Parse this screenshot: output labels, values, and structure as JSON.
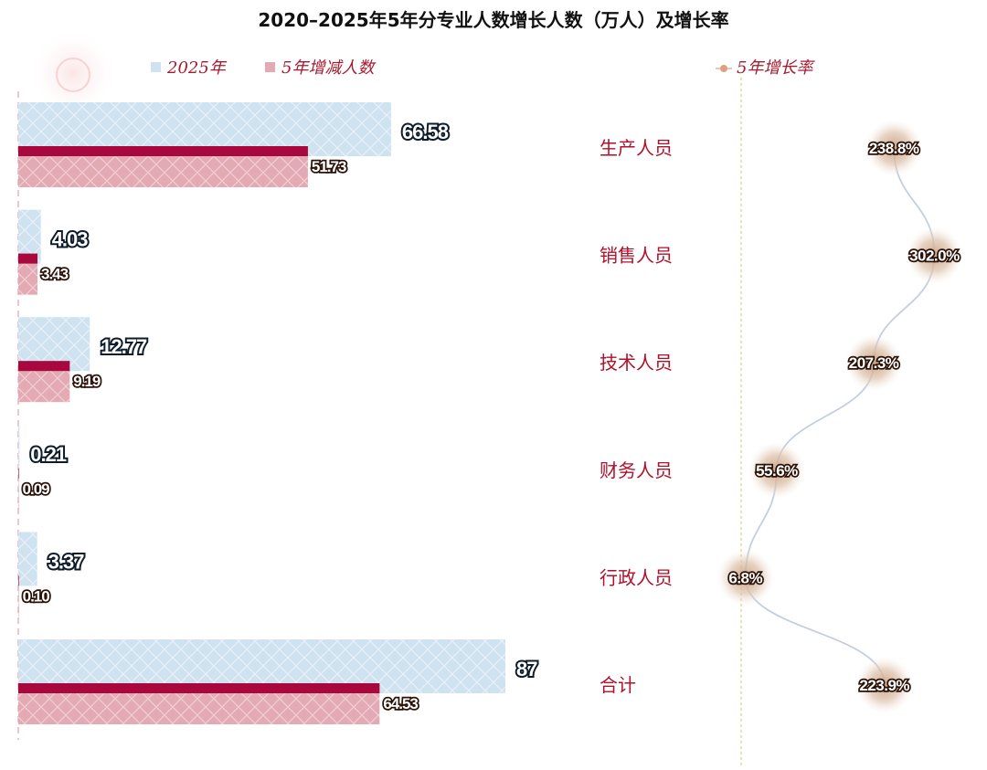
{
  "chart_data": {
    "type": "bar",
    "orientation": "horizontal",
    "title": "2020–2025年5年分专业人数增长人数（万人）及增长率",
    "categories": [
      "生产人员",
      "销售人员",
      "技术人员",
      "财务人员",
      "行政人员",
      "合计"
    ],
    "series": [
      {
        "name": "2025年",
        "type": "bar",
        "values": [
          66.58,
          4.03,
          12.77,
          0.21,
          3.37,
          87
        ],
        "labels": [
          "66.58",
          "4.03",
          "12.77",
          "0.21",
          "3.37",
          "87"
        ]
      },
      {
        "name": "5年增减人数",
        "type": "bar",
        "values": [
          51.73,
          3.43,
          9.19,
          0.09,
          0.1,
          64.53
        ],
        "labels": [
          "51.73",
          "3.43",
          "9.19",
          "0.09",
          "0.10",
          "64.53"
        ]
      },
      {
        "name": "5年增长率",
        "type": "line",
        "values": [
          238.8,
          302.0,
          207.3,
          55.6,
          6.8,
          223.9
        ],
        "labels": [
          "238.8%",
          "302.0%",
          "207.3%",
          "55.6%",
          "6.8%",
          "223.9%"
        ]
      }
    ],
    "legend_position": "top",
    "grid": false,
    "colors": {
      "bar_2025": "#cfe2f0",
      "bar_change": "#e3aab4",
      "bar_change_accent": "#a8083e",
      "rate_line": "#c5cee0",
      "text_red": "#b0102a",
      "marker": "#d9b8a0"
    }
  }
}
